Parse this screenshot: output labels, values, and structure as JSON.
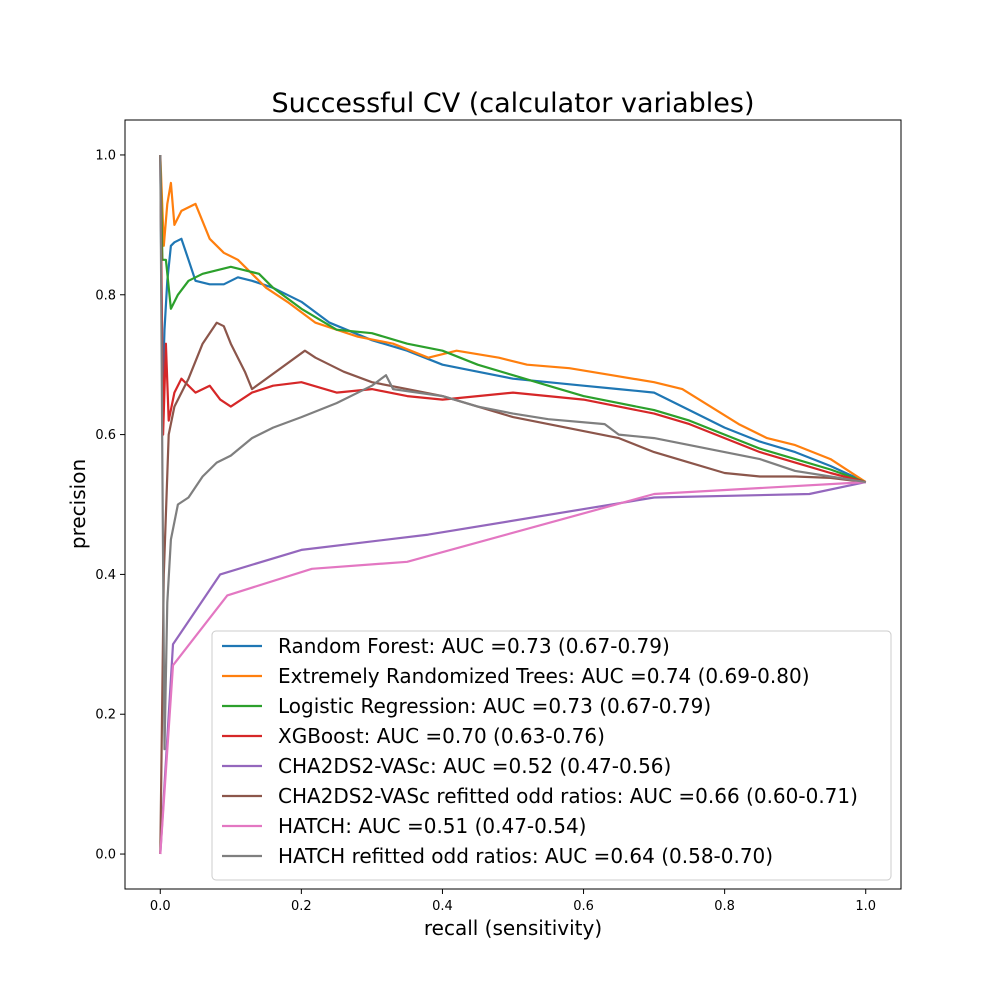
{
  "chart_data": {
    "type": "line",
    "title": "Successful CV (calculator variables)",
    "xlabel": "recall (sensitivity)",
    "ylabel": "precision",
    "xlim": [
      -0.05,
      1.05
    ],
    "ylim": [
      -0.05,
      1.05
    ],
    "xticks": [
      "0.0",
      "0.2",
      "0.4",
      "0.6",
      "0.8",
      "1.0"
    ],
    "yticks": [
      "0.0",
      "0.2",
      "0.4",
      "0.6",
      "0.8",
      "1.0"
    ],
    "grid": false,
    "legend_position": "lower-right",
    "series": [
      {
        "name": "Random Forest: AUC =0.73 (0.67-0.79)",
        "color": "#1f77b4",
        "points": [
          [
            0.0,
            1.0
          ],
          [
            0.003,
            0.65
          ],
          [
            0.006,
            0.75
          ],
          [
            0.01,
            0.82
          ],
          [
            0.015,
            0.87
          ],
          [
            0.02,
            0.875
          ],
          [
            0.03,
            0.88
          ],
          [
            0.04,
            0.85
          ],
          [
            0.05,
            0.82
          ],
          [
            0.07,
            0.815
          ],
          [
            0.09,
            0.815
          ],
          [
            0.11,
            0.825
          ],
          [
            0.13,
            0.82
          ],
          [
            0.16,
            0.81
          ],
          [
            0.2,
            0.79
          ],
          [
            0.24,
            0.76
          ],
          [
            0.3,
            0.735
          ],
          [
            0.35,
            0.72
          ],
          [
            0.4,
            0.7
          ],
          [
            0.45,
            0.69
          ],
          [
            0.5,
            0.68
          ],
          [
            0.55,
            0.675
          ],
          [
            0.6,
            0.67
          ],
          [
            0.65,
            0.665
          ],
          [
            0.7,
            0.66
          ],
          [
            0.75,
            0.635
          ],
          [
            0.8,
            0.61
          ],
          [
            0.85,
            0.59
          ],
          [
            0.9,
            0.575
          ],
          [
            0.95,
            0.555
          ],
          [
            1.0,
            0.532
          ]
        ]
      },
      {
        "name": "Extremely Randomized Trees: AUC =0.74 (0.69-0.80)",
        "color": "#ff7f0e",
        "points": [
          [
            0.0,
            1.0
          ],
          [
            0.005,
            0.87
          ],
          [
            0.01,
            0.93
          ],
          [
            0.015,
            0.96
          ],
          [
            0.02,
            0.9
          ],
          [
            0.03,
            0.92
          ],
          [
            0.05,
            0.93
          ],
          [
            0.07,
            0.88
          ],
          [
            0.09,
            0.86
          ],
          [
            0.11,
            0.85
          ],
          [
            0.13,
            0.83
          ],
          [
            0.15,
            0.81
          ],
          [
            0.18,
            0.79
          ],
          [
            0.22,
            0.76
          ],
          [
            0.28,
            0.74
          ],
          [
            0.33,
            0.73
          ],
          [
            0.38,
            0.71
          ],
          [
            0.42,
            0.72
          ],
          [
            0.48,
            0.71
          ],
          [
            0.52,
            0.7
          ],
          [
            0.58,
            0.695
          ],
          [
            0.64,
            0.685
          ],
          [
            0.7,
            0.675
          ],
          [
            0.74,
            0.665
          ],
          [
            0.78,
            0.64
          ],
          [
            0.82,
            0.615
          ],
          [
            0.86,
            0.595
          ],
          [
            0.9,
            0.585
          ],
          [
            0.95,
            0.565
          ],
          [
            1.0,
            0.532
          ]
        ]
      },
      {
        "name": "Logistic Regression: AUC =0.73 (0.67-0.79)",
        "color": "#2ca02c",
        "points": [
          [
            0.0,
            1.0
          ],
          [
            0.003,
            0.85
          ],
          [
            0.008,
            0.85
          ],
          [
            0.015,
            0.78
          ],
          [
            0.025,
            0.8
          ],
          [
            0.04,
            0.82
          ],
          [
            0.06,
            0.83
          ],
          [
            0.08,
            0.835
          ],
          [
            0.1,
            0.84
          ],
          [
            0.12,
            0.835
          ],
          [
            0.14,
            0.83
          ],
          [
            0.16,
            0.81
          ],
          [
            0.2,
            0.78
          ],
          [
            0.25,
            0.75
          ],
          [
            0.3,
            0.745
          ],
          [
            0.35,
            0.73
          ],
          [
            0.4,
            0.72
          ],
          [
            0.45,
            0.7
          ],
          [
            0.5,
            0.685
          ],
          [
            0.55,
            0.67
          ],
          [
            0.6,
            0.655
          ],
          [
            0.65,
            0.645
          ],
          [
            0.7,
            0.635
          ],
          [
            0.75,
            0.62
          ],
          [
            0.8,
            0.6
          ],
          [
            0.85,
            0.58
          ],
          [
            0.9,
            0.565
          ],
          [
            0.95,
            0.55
          ],
          [
            1.0,
            0.532
          ]
        ]
      },
      {
        "name": "XGBoost: AUC =0.70 (0.63-0.76)",
        "color": "#d62728",
        "points": [
          [
            0.0,
            1.0
          ],
          [
            0.004,
            0.6
          ],
          [
            0.008,
            0.73
          ],
          [
            0.012,
            0.62
          ],
          [
            0.02,
            0.66
          ],
          [
            0.03,
            0.68
          ],
          [
            0.05,
            0.66
          ],
          [
            0.07,
            0.67
          ],
          [
            0.085,
            0.65
          ],
          [
            0.1,
            0.64
          ],
          [
            0.13,
            0.66
          ],
          [
            0.16,
            0.67
          ],
          [
            0.2,
            0.675
          ],
          [
            0.25,
            0.66
          ],
          [
            0.3,
            0.665
          ],
          [
            0.35,
            0.655
          ],
          [
            0.4,
            0.65
          ],
          [
            0.45,
            0.655
          ],
          [
            0.5,
            0.66
          ],
          [
            0.55,
            0.655
          ],
          [
            0.6,
            0.65
          ],
          [
            0.65,
            0.64
          ],
          [
            0.7,
            0.63
          ],
          [
            0.75,
            0.615
          ],
          [
            0.8,
            0.595
          ],
          [
            0.85,
            0.575
          ],
          [
            0.9,
            0.56
          ],
          [
            0.95,
            0.545
          ],
          [
            1.0,
            0.532
          ]
        ]
      },
      {
        "name": "CHA2DS2-VASc: AUC =0.52 (0.47-0.56)",
        "color": "#9467bd",
        "points": [
          [
            0.0,
            0.0
          ],
          [
            0.018,
            0.3
          ],
          [
            0.085,
            0.4
          ],
          [
            0.2,
            0.435
          ],
          [
            0.38,
            0.457
          ],
          [
            0.7,
            0.51
          ],
          [
            0.92,
            0.515
          ],
          [
            1.0,
            0.532
          ]
        ]
      },
      {
        "name": "CHA2DS2-VASc refitted odd ratios: AUC =0.66 (0.60-0.71)",
        "color": "#8c564b",
        "points": [
          [
            0.0,
            0.0
          ],
          [
            0.005,
            0.4
          ],
          [
            0.012,
            0.6
          ],
          [
            0.02,
            0.64
          ],
          [
            0.04,
            0.68
          ],
          [
            0.06,
            0.73
          ],
          [
            0.08,
            0.76
          ],
          [
            0.09,
            0.755
          ],
          [
            0.1,
            0.73
          ],
          [
            0.12,
            0.69
          ],
          [
            0.13,
            0.665
          ],
          [
            0.205,
            0.72
          ],
          [
            0.22,
            0.71
          ],
          [
            0.26,
            0.69
          ],
          [
            0.3,
            0.675
          ],
          [
            0.35,
            0.665
          ],
          [
            0.4,
            0.655
          ],
          [
            0.45,
            0.64
          ],
          [
            0.5,
            0.625
          ],
          [
            0.55,
            0.615
          ],
          [
            0.6,
            0.605
          ],
          [
            0.65,
            0.595
          ],
          [
            0.7,
            0.575
          ],
          [
            0.75,
            0.56
          ],
          [
            0.8,
            0.545
          ],
          [
            0.85,
            0.54
          ],
          [
            0.9,
            0.54
          ],
          [
            0.95,
            0.538
          ],
          [
            1.0,
            0.532
          ]
        ]
      },
      {
        "name": "HATCH: AUC =0.51 (0.47-0.54)",
        "color": "#e377c2",
        "points": [
          [
            0.0,
            0.0
          ],
          [
            0.018,
            0.27
          ],
          [
            0.095,
            0.37
          ],
          [
            0.215,
            0.408
          ],
          [
            0.35,
            0.418
          ],
          [
            0.7,
            0.515
          ],
          [
            1.0,
            0.532
          ]
        ]
      },
      {
        "name": "HATCH refitted odd ratios: AUC =0.64 (0.58-0.70)",
        "color": "#7f7f7f",
        "points": [
          [
            0.0,
            1.0
          ],
          [
            0.003,
            0.55
          ],
          [
            0.006,
            0.15
          ],
          [
            0.01,
            0.36
          ],
          [
            0.015,
            0.45
          ],
          [
            0.025,
            0.5
          ],
          [
            0.04,
            0.51
          ],
          [
            0.06,
            0.54
          ],
          [
            0.08,
            0.56
          ],
          [
            0.1,
            0.57
          ],
          [
            0.13,
            0.595
          ],
          [
            0.16,
            0.61
          ],
          [
            0.2,
            0.625
          ],
          [
            0.25,
            0.645
          ],
          [
            0.3,
            0.67
          ],
          [
            0.32,
            0.685
          ],
          [
            0.33,
            0.665
          ],
          [
            0.4,
            0.655
          ],
          [
            0.45,
            0.64
          ],
          [
            0.5,
            0.63
          ],
          [
            0.55,
            0.622
          ],
          [
            0.63,
            0.615
          ],
          [
            0.65,
            0.6
          ],
          [
            0.7,
            0.595
          ],
          [
            0.75,
            0.585
          ],
          [
            0.8,
            0.575
          ],
          [
            0.85,
            0.565
          ],
          [
            0.9,
            0.548
          ],
          [
            0.95,
            0.54
          ],
          [
            1.0,
            0.532
          ]
        ]
      }
    ]
  }
}
